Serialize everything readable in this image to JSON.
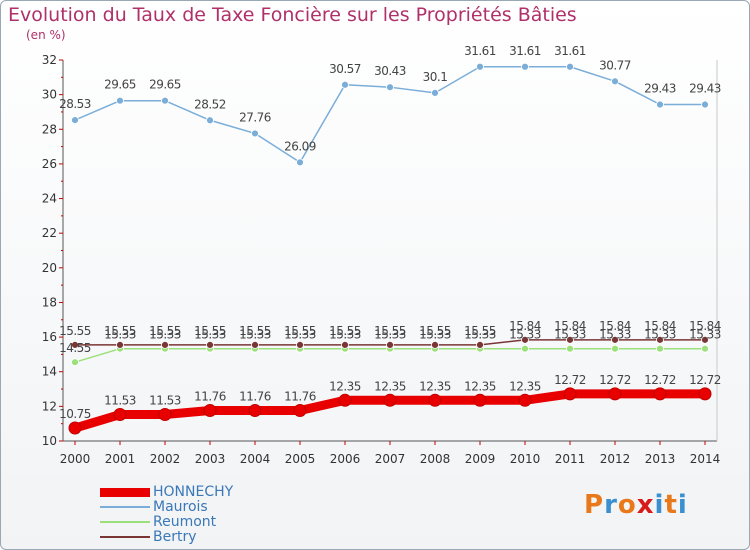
{
  "title": "Evolution du Taux de Taxe Foncière sur les Propriétés Bâties",
  "unit_label": "(en %)",
  "logo": {
    "text": "Proxiti",
    "colors": [
      "#e8781a",
      "#3a8fd0",
      "#e8781a",
      "#d81a1a",
      "#3a8fd0",
      "#e8781a",
      "#3a8fd0"
    ]
  },
  "chart_data": {
    "type": "line",
    "x": [
      "2000",
      "2001",
      "2002",
      "2003",
      "2004",
      "2005",
      "2006",
      "2007",
      "2008",
      "2009",
      "2010",
      "2011",
      "2012",
      "2013",
      "2014"
    ],
    "ylim": [
      10,
      32
    ],
    "yticks": [
      10,
      12,
      14,
      16,
      18,
      20,
      22,
      24,
      26,
      28,
      30,
      32
    ],
    "grid": false,
    "legend_position": "bottom-left",
    "series": [
      {
        "name": "HONNECHY",
        "color": "#e80000",
        "values": [
          10.75,
          11.53,
          11.53,
          11.76,
          11.76,
          11.76,
          12.35,
          12.35,
          12.35,
          12.35,
          12.35,
          12.72,
          12.72,
          12.72,
          12.72
        ],
        "labels": [
          "10.75",
          "11.53",
          "11.53",
          "11.76",
          "11.76",
          "11.76",
          "12.35",
          "12.35",
          "12.35",
          "12.35",
          "12.35",
          "12.72",
          "12.72",
          "12.72",
          "12.72"
        ]
      },
      {
        "name": "Maurois",
        "color": "#7aaed8",
        "values": [
          28.53,
          29.65,
          29.65,
          28.52,
          27.76,
          26.09,
          30.57,
          30.43,
          30.1,
          31.61,
          31.61,
          31.61,
          30.77,
          29.43,
          29.43
        ],
        "labels": [
          "28.53",
          "29.65",
          "29.65",
          "28.52",
          "27.76",
          "26.09",
          "30.57",
          "30.43",
          "30.1",
          "31.61",
          "31.61",
          "31.61",
          "30.77",
          "29.43",
          "29.43"
        ]
      },
      {
        "name": "Reumont",
        "color": "#9be07a",
        "values": [
          14.55,
          15.33,
          15.33,
          15.33,
          15.33,
          15.33,
          15.33,
          15.33,
          15.33,
          15.33,
          15.33,
          15.33,
          15.33,
          15.33,
          15.33
        ],
        "labels": [
          "14.55",
          "15.33",
          "15.33",
          "15.33",
          "15.33",
          "15.33",
          "15.33",
          "15.33",
          "15.33",
          "15.33",
          "15.33",
          "15.33",
          "15.33",
          "15.33",
          "15.33"
        ]
      },
      {
        "name": "Bertry",
        "color": "#7a3535",
        "values": [
          15.55,
          15.55,
          15.55,
          15.55,
          15.55,
          15.55,
          15.55,
          15.55,
          15.55,
          15.55,
          15.84,
          15.84,
          15.84,
          15.84,
          15.84
        ],
        "labels": [
          "15.55",
          "15.55",
          "15.55",
          "15.55",
          "15.55",
          "15.55",
          "15.55",
          "15.55",
          "15.55",
          "15.55",
          "15.84",
          "15.84",
          "15.84",
          "15.84",
          "15.84"
        ]
      }
    ]
  }
}
